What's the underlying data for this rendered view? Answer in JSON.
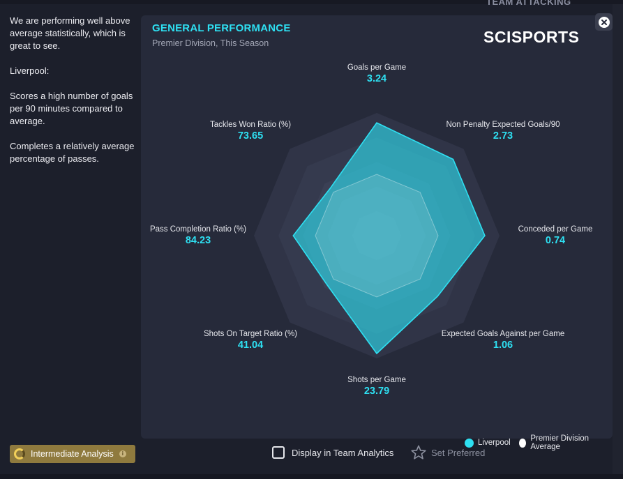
{
  "background": {
    "right_heading": "TEAM ATTACKING"
  },
  "insight": {
    "summary": "We are performing well above average statistically, which is great to see.",
    "team": "Liverpool:",
    "point1": "Scores a high number of goals per 90 minutes compared to average.",
    "point2": "Completes a relatively average percentage of passes."
  },
  "panel": {
    "title": "GENERAL PERFORMANCE",
    "subtitle": "Premier Division, This Season",
    "brand": "SCISPORTS"
  },
  "chart_data": {
    "type": "radar",
    "title": "GENERAL PERFORMANCE",
    "subtitle": "Premier Division, This Season",
    "axes": [
      {
        "label": "Goals per Game",
        "value": "3.24"
      },
      {
        "label": "Non Penalty Expected Goals/90",
        "value": "2.73"
      },
      {
        "label": "Conceded per Game",
        "value": "0.74"
      },
      {
        "label": "Expected Goals Against per Game",
        "value": "1.06"
      },
      {
        "label": "Shots per Game",
        "value": "23.79"
      },
      {
        "label": "Shots On Target Ratio (%)",
        "value": "41.04"
      },
      {
        "label": "Pass Completion Ratio (%)",
        "value": "84.23"
      },
      {
        "label": "Tackles Won Ratio (%)",
        "value": "73.65"
      }
    ],
    "scale_levels": 5,
    "series": [
      {
        "name": "Liverpool",
        "color": "#2ee0f2",
        "normalized": [
          0.92,
          0.88,
          0.88,
          0.7,
          0.96,
          0.57,
          0.68,
          0.54
        ]
      },
      {
        "name": "Premier Division Average",
        "color": "#ffffff",
        "normalized": [
          0.5,
          0.5,
          0.5,
          0.5,
          0.5,
          0.5,
          0.5,
          0.5
        ]
      }
    ],
    "legend_position": "bottom-right"
  },
  "legend": {
    "team_label": "Liverpool",
    "average_label": "Premier Division Average"
  },
  "footer": {
    "analysis_level": "Intermediate Analysis",
    "info_symbol": "i",
    "display_label": "Display in Team Analytics",
    "preferred_label": "Set Preferred"
  },
  "colors": {
    "accent": "#2ee0f2",
    "panel": "#262a3a",
    "badge": "#8f7a3e"
  }
}
